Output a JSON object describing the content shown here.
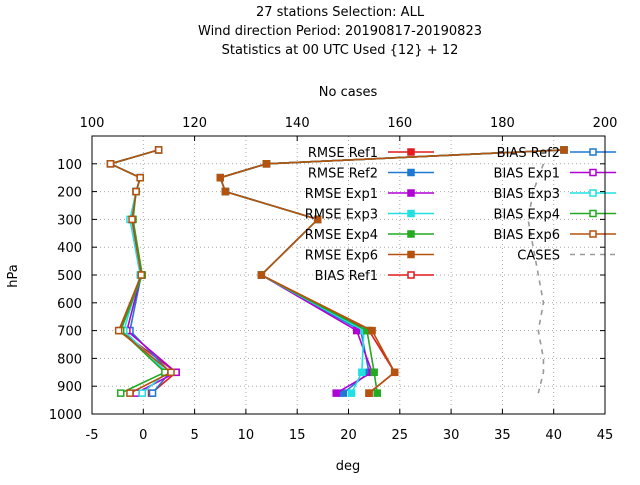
{
  "chart_data": {
    "type": "line",
    "title_lines": [
      "27 stations Selection: ALL",
      "Wind direction  Period: 20190817-20190823",
      "Statistics at 00 UTC  Used {12} + 12"
    ],
    "xlabel": "deg",
    "ylabel": "hPa",
    "x2label": "No cases",
    "xlim": [
      -5,
      45
    ],
    "ylim": [
      1000,
      0
    ],
    "x2lim": [
      100,
      200
    ],
    "xticks": [
      -5,
      0,
      5,
      10,
      15,
      20,
      25,
      30,
      35,
      40,
      45
    ],
    "yticks": [
      100,
      200,
      300,
      400,
      500,
      600,
      700,
      800,
      900,
      1000
    ],
    "x2ticks": [
      100,
      120,
      140,
      160,
      180,
      200
    ],
    "grid": "dotted",
    "legend_position": "top-right",
    "series": [
      {
        "name": "RMSE Ref1",
        "color": "#e41a1c",
        "marker": "filled-square",
        "x": [
          41,
          12,
          7.5,
          8,
          17,
          11.5,
          22,
          24.5,
          22
        ],
        "y": [
          50,
          100,
          150,
          200,
          300,
          500,
          700,
          850,
          925
        ]
      },
      {
        "name": "RMSE Ref2",
        "color": "#1f78d4",
        "marker": "filled-square",
        "x": [
          41,
          12,
          7.5,
          8,
          17,
          11.5,
          21.2,
          22,
          19.5
        ],
        "y": [
          50,
          100,
          150,
          200,
          300,
          500,
          700,
          850,
          925
        ]
      },
      {
        "name": "RMSE Exp1",
        "color": "#b000d6",
        "marker": "filled-square",
        "x": [
          41,
          12,
          7.5,
          8,
          17,
          11.5,
          20.8,
          22.3,
          18.8
        ],
        "y": [
          50,
          100,
          150,
          200,
          300,
          500,
          700,
          850,
          925
        ]
      },
      {
        "name": "RMSE Exp3",
        "color": "#22e0e0",
        "marker": "filled-square",
        "x": [
          41,
          12,
          7.5,
          8,
          17,
          11.5,
          21.5,
          21.3,
          20.3
        ],
        "y": [
          50,
          100,
          150,
          200,
          300,
          500,
          700,
          850,
          925
        ]
      },
      {
        "name": "RMSE Exp4",
        "color": "#22aa22",
        "marker": "filled-square",
        "x": [
          41,
          12,
          7.5,
          8,
          17,
          11.5,
          21.8,
          22.5,
          22.8
        ],
        "y": [
          50,
          100,
          150,
          200,
          300,
          500,
          700,
          850,
          925
        ]
      },
      {
        "name": "RMSE Exp6",
        "color": "#b5520f",
        "marker": "filled-square",
        "x": [
          41,
          12,
          7.5,
          8,
          17,
          11.5,
          22.3,
          24.5,
          22
        ],
        "y": [
          50,
          100,
          150,
          200,
          300,
          500,
          700,
          850,
          925
        ]
      },
      {
        "name": "BIAS Ref1",
        "color": "#e41a1c",
        "marker": "open-square",
        "x": [
          1.5,
          -3.2,
          -0.3,
          -0.7,
          -1.1,
          -0.2,
          -2.3,
          3.2,
          0.8
        ],
        "y": [
          50,
          100,
          150,
          200,
          300,
          500,
          700,
          850,
          925
        ]
      },
      {
        "name": "BIAS Ref2",
        "color": "#1f78d4",
        "marker": "open-square",
        "x": [
          1.5,
          -3.2,
          -0.3,
          -0.7,
          -1.1,
          -0.2,
          -1.3,
          2.6,
          0.9
        ],
        "y": [
          50,
          100,
          150,
          200,
          300,
          500,
          700,
          850,
          925
        ]
      },
      {
        "name": "BIAS Exp1",
        "color": "#b000d6",
        "marker": "open-square",
        "x": [
          1.5,
          -3.2,
          -0.3,
          -0.7,
          -1.1,
          -0.2,
          -1.6,
          3.2,
          -0.7
        ],
        "y": [
          50,
          100,
          150,
          200,
          300,
          500,
          700,
          850,
          925
        ]
      },
      {
        "name": "BIAS Exp3",
        "color": "#22e0e0",
        "marker": "open-square",
        "x": [
          1.5,
          -3.2,
          -0.3,
          -0.7,
          -1.3,
          -0.3,
          -1.9,
          2.3,
          -0.1
        ],
        "y": [
          50,
          100,
          150,
          200,
          300,
          500,
          700,
          850,
          925
        ]
      },
      {
        "name": "BIAS Exp4",
        "color": "#22aa22",
        "marker": "open-square",
        "x": [
          1.5,
          -3.2,
          -0.3,
          -0.7,
          -1.0,
          -0.1,
          -2.2,
          2.1,
          -2.2
        ],
        "y": [
          50,
          100,
          150,
          200,
          300,
          500,
          700,
          850,
          925
        ]
      },
      {
        "name": "BIAS Exp6",
        "color": "#b5520f",
        "marker": "open-square",
        "x": [
          1.5,
          -3.2,
          -0.3,
          -0.7,
          -1.1,
          -0.2,
          -2.4,
          2.7,
          -1.3
        ],
        "y": [
          50,
          100,
          150,
          200,
          300,
          500,
          700,
          850,
          925
        ]
      },
      {
        "name": "CASES",
        "color": "#999999",
        "marker": "none",
        "dashed": true,
        "axis": "x2",
        "x": [
          188,
          186,
          185,
          186,
          187,
          188,
          187,
          188,
          188,
          187
        ],
        "y": [
          100,
          200,
          300,
          400,
          500,
          600,
          700,
          800,
          850,
          925
        ]
      }
    ]
  }
}
